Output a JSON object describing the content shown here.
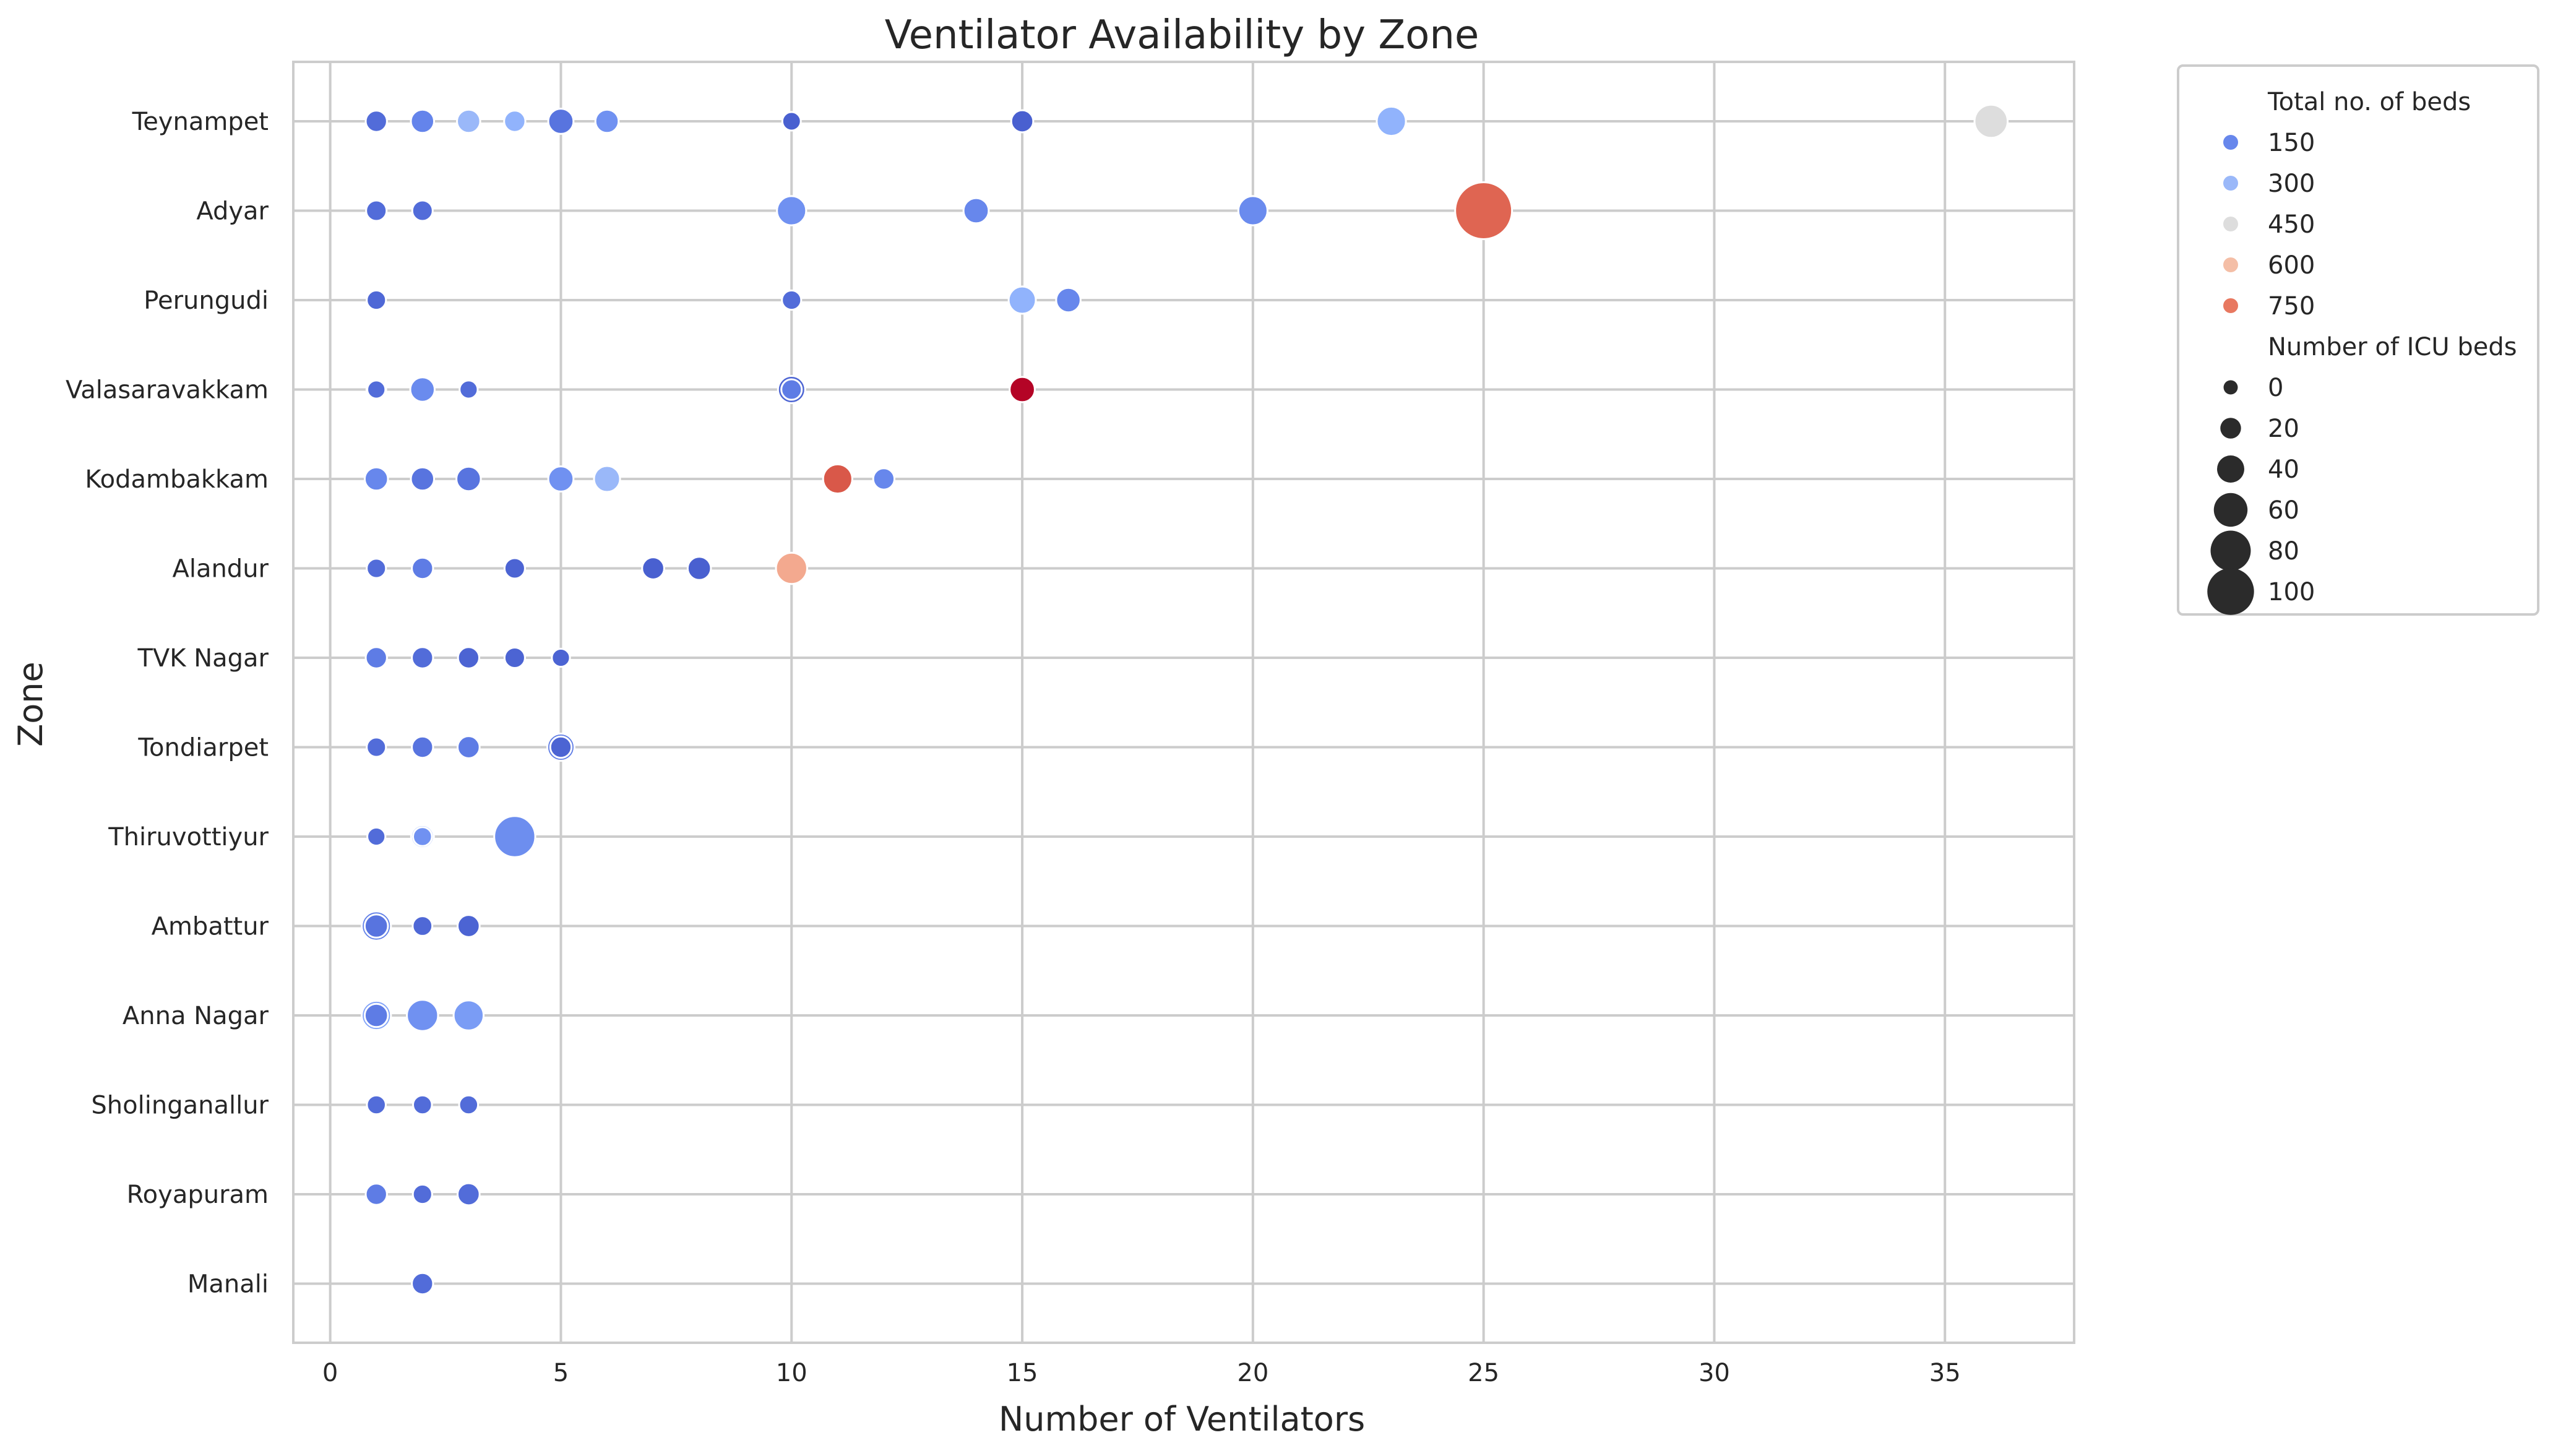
{
  "chart_data": {
    "type": "scatter",
    "title": "Ventilator Availability by Zone",
    "xlabel": "Number of Ventilators",
    "ylabel": "Zone",
    "xlim": [
      -0.8,
      37.8
    ],
    "xticks": [
      0,
      5,
      10,
      15,
      20,
      25,
      30,
      35
    ],
    "grid": true,
    "categories": [
      "Teynampet",
      "Adyar",
      "Perungudi",
      "Valasaravakkam",
      "Kodambakkam",
      "Alandur",
      "TVK Nagar",
      "Tondiarpet",
      "Thiruvottiyur",
      "Ambattur",
      "Anna Nagar",
      "Sholinganallur",
      "Royapuram",
      "Manali"
    ],
    "hue": {
      "name": "Total no. of beds",
      "min": 0,
      "max": 900
    },
    "size": {
      "name": "Number of ICU beds",
      "min": 0,
      "max": 100
    },
    "legend": {
      "placement": "outside-right-top",
      "hue_title": "Total no. of beds",
      "hue_entries": [
        {
          "label": "150",
          "value": 150
        },
        {
          "label": "300",
          "value": 300
        },
        {
          "label": "450",
          "value": 450
        },
        {
          "label": "600",
          "value": 600
        },
        {
          "label": "750",
          "value": 750
        }
      ],
      "size_title": "Number of ICU beds",
      "size_entries": [
        {
          "label": "0",
          "value": 0
        },
        {
          "label": "20",
          "value": 20
        },
        {
          "label": "40",
          "value": 40
        },
        {
          "label": "60",
          "value": 60
        },
        {
          "label": "80",
          "value": 80
        },
        {
          "label": "100",
          "value": 100
        }
      ]
    },
    "points": [
      {
        "zone": "Teynampet",
        "x": 1,
        "beds": 80,
        "icu": 10
      },
      {
        "zone": "Teynampet",
        "x": 2,
        "beds": 140,
        "icu": 15
      },
      {
        "zone": "Teynampet",
        "x": 3,
        "beds": 300,
        "icu": 15
      },
      {
        "zone": "Teynampet",
        "x": 4,
        "beds": 280,
        "icu": 10
      },
      {
        "zone": "Teynampet",
        "x": 5,
        "beds": 100,
        "icu": 20
      },
      {
        "zone": "Teynampet",
        "x": 6,
        "beds": 180,
        "icu": 15
      },
      {
        "zone": "Teynampet",
        "x": 10,
        "beds": 50,
        "icu": 3
      },
      {
        "zone": "Teynampet",
        "x": 15,
        "beds": 50,
        "icu": 12
      },
      {
        "zone": "Teynampet",
        "x": 23,
        "beds": 280,
        "icu": 30
      },
      {
        "zone": "Teynampet",
        "x": 36,
        "beds": 450,
        "icu": 40
      },
      {
        "zone": "Adyar",
        "x": 1,
        "beds": 80,
        "icu": 8
      },
      {
        "zone": "Adyar",
        "x": 2,
        "beds": 80,
        "icu": 8
      },
      {
        "zone": "Adyar",
        "x": 10,
        "beds": 180,
        "icu": 30
      },
      {
        "zone": "Adyar",
        "x": 14,
        "beds": 150,
        "icu": 20
      },
      {
        "zone": "Adyar",
        "x": 20,
        "beds": 160,
        "icu": 30
      },
      {
        "zone": "Adyar",
        "x": 25,
        "beds": 780,
        "icu": 100
      },
      {
        "zone": "Perungudi",
        "x": 1,
        "beds": 70,
        "icu": 5
      },
      {
        "zone": "Perungudi",
        "x": 10,
        "beds": 80,
        "icu": 5
      },
      {
        "zone": "Perungudi",
        "x": 15,
        "beds": 280,
        "icu": 25
      },
      {
        "zone": "Perungudi",
        "x": 16,
        "beds": 150,
        "icu": 18
      },
      {
        "zone": "Valasaravakkam",
        "x": 1,
        "beds": 150,
        "icu": 6
      },
      {
        "zone": "Valasaravakkam",
        "x": 1,
        "beds": 80,
        "icu": 2
      },
      {
        "zone": "Valasaravakkam",
        "x": 2,
        "beds": 160,
        "icu": 18
      },
      {
        "zone": "Valasaravakkam",
        "x": 3,
        "beds": 80,
        "icu": 2
      },
      {
        "zone": "Valasaravakkam",
        "x": 10,
        "beds": 60,
        "icu": 25
      },
      {
        "zone": "Valasaravakkam",
        "x": 10,
        "beds": 120,
        "icu": 8
      },
      {
        "zone": "Valasaravakkam",
        "x": 15,
        "beds": 900,
        "icu": 20
      },
      {
        "zone": "Kodambakkam",
        "x": 1,
        "beds": 150,
        "icu": 15
      },
      {
        "zone": "Kodambakkam",
        "x": 2,
        "beds": 100,
        "icu": 15
      },
      {
        "zone": "Kodambakkam",
        "x": 3,
        "beds": 100,
        "icu": 18
      },
      {
        "zone": "Kodambakkam",
        "x": 5,
        "beds": 180,
        "icu": 20
      },
      {
        "zone": "Kodambakkam",
        "x": 6,
        "beds": 300,
        "icu": 22
      },
      {
        "zone": "Kodambakkam",
        "x": 11,
        "beds": 800,
        "icu": 30
      },
      {
        "zone": "Kodambakkam",
        "x": 12,
        "beds": 150,
        "icu": 10
      },
      {
        "zone": "Alandur",
        "x": 1,
        "beds": 80,
        "icu": 5
      },
      {
        "zone": "Alandur",
        "x": 2,
        "beds": 120,
        "icu": 10
      },
      {
        "zone": "Alandur",
        "x": 4,
        "beds": 60,
        "icu": 8
      },
      {
        "zone": "Alandur",
        "x": 7,
        "beds": 50,
        "icu": 12
      },
      {
        "zone": "Alandur",
        "x": 8,
        "beds": 50,
        "icu": 15
      },
      {
        "zone": "Alandur",
        "x": 10,
        "beds": 650,
        "icu": 35
      },
      {
        "zone": "TVK Nagar",
        "x": 1,
        "beds": 120,
        "icu": 10
      },
      {
        "zone": "TVK Nagar",
        "x": 2,
        "beds": 80,
        "icu": 10
      },
      {
        "zone": "TVK Nagar",
        "x": 3,
        "beds": 60,
        "icu": 10
      },
      {
        "zone": "TVK Nagar",
        "x": 4,
        "beds": 60,
        "icu": 8
      },
      {
        "zone": "TVK Nagar",
        "x": 5,
        "beds": 60,
        "icu": 2
      },
      {
        "zone": "Tondiarpet",
        "x": 1,
        "beds": 80,
        "icu": 5
      },
      {
        "zone": "Tondiarpet",
        "x": 2,
        "beds": 100,
        "icu": 10
      },
      {
        "zone": "Tondiarpet",
        "x": 3,
        "beds": 120,
        "icu": 12
      },
      {
        "zone": "Tondiarpet",
        "x": 5,
        "beds": 120,
        "icu": 25
      },
      {
        "zone": "Tondiarpet",
        "x": 5,
        "beds": 60,
        "icu": 10
      },
      {
        "zone": "Thiruvottiyur",
        "x": 1,
        "beds": 80,
        "icu": 2
      },
      {
        "zone": "Thiruvottiyur",
        "x": 2,
        "beds": 230,
        "icu": 14
      },
      {
        "zone": "Thiruvottiyur",
        "x": 2,
        "beds": 180,
        "icu": 4
      },
      {
        "zone": "Thiruvottiyur",
        "x": 4,
        "beds": 170,
        "icu": 60
      },
      {
        "zone": "Ambattur",
        "x": 1,
        "beds": 130,
        "icu": 30
      },
      {
        "zone": "Ambattur",
        "x": 1,
        "beds": 100,
        "icu": 15
      },
      {
        "zone": "Ambattur",
        "x": 2,
        "beds": 70,
        "icu": 6
      },
      {
        "zone": "Ambattur",
        "x": 3,
        "beds": 60,
        "icu": 12
      },
      {
        "zone": "Anna Nagar",
        "x": 1,
        "beds": 230,
        "icu": 30
      },
      {
        "zone": "Anna Nagar",
        "x": 1,
        "beds": 120,
        "icu": 15
      },
      {
        "zone": "Anna Nagar",
        "x": 2,
        "beds": 180,
        "icu": 35
      },
      {
        "zone": "Anna Nagar",
        "x": 3,
        "beds": 210,
        "icu": 32
      },
      {
        "zone": "Sholinganallur",
        "x": 1,
        "beds": 80,
        "icu": 4
      },
      {
        "zone": "Sholinganallur",
        "x": 2,
        "beds": 80,
        "icu": 4
      },
      {
        "zone": "Sholinganallur",
        "x": 3,
        "beds": 80,
        "icu": 4
      },
      {
        "zone": "Royapuram",
        "x": 1,
        "beds": 120,
        "icu": 10
      },
      {
        "zone": "Royapuram",
        "x": 2,
        "beds": 80,
        "icu": 5
      },
      {
        "zone": "Royapuram",
        "x": 3,
        "beds": 80,
        "icu": 12
      },
      {
        "zone": "Manali",
        "x": 2,
        "beds": 80,
        "icu": 10
      }
    ]
  }
}
